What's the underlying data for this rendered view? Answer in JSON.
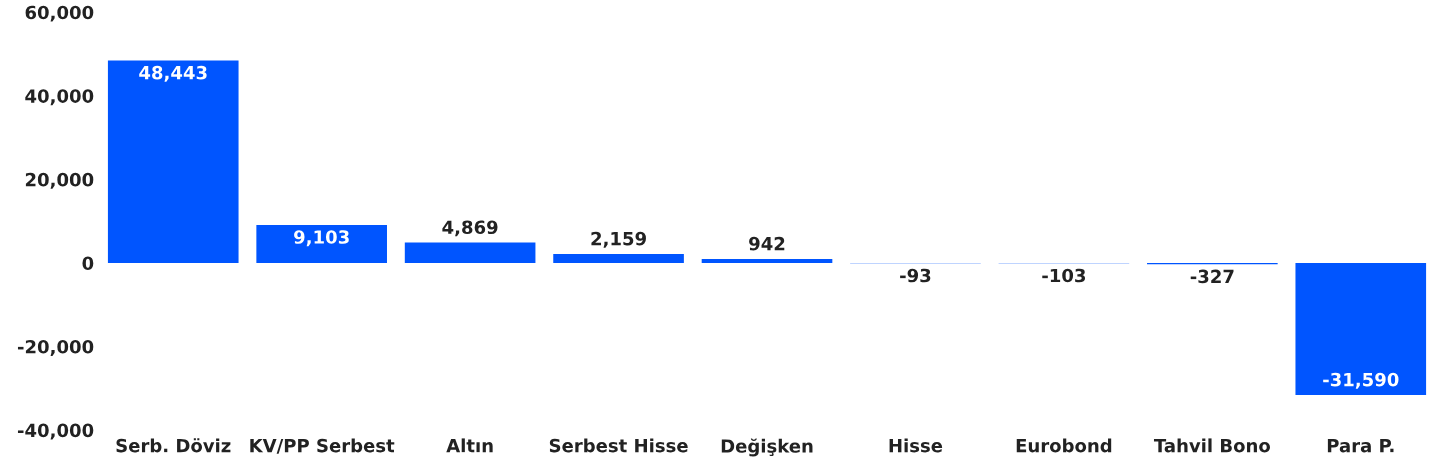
{
  "chart_data": {
    "type": "bar",
    "categories": [
      "Serb. Döviz",
      "KV/PP Serbest",
      "Altın",
      "Serbest Hisse",
      "Değişken",
      "Hisse",
      "Eurobond",
      "Tahvil Bono",
      "Para P."
    ],
    "values": [
      48443,
      9103,
      4869,
      2159,
      942,
      -93,
      -103,
      -327,
      -31590
    ],
    "value_labels": [
      "48,443",
      "9,103",
      "4,869",
      "2,159",
      "942",
      "-93",
      "-103",
      "-327",
      "-31,590"
    ],
    "color": "#0055ff",
    "ylim": [
      -40000,
      60000
    ],
    "yticks": [
      {
        "value": -40000,
        "label": "-40,000"
      },
      {
        "value": -20000,
        "label": "-20,000"
      },
      {
        "value": 0,
        "label": "0"
      },
      {
        "value": 20000,
        "label": "20,000"
      },
      {
        "value": 40000,
        "label": "40,000"
      },
      {
        "value": 60000,
        "label": "60,000"
      }
    ],
    "grid": false,
    "legend": false
  }
}
